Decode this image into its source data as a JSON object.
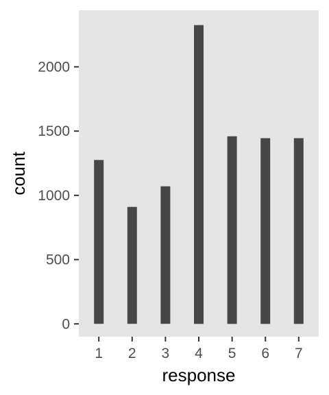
{
  "chart_data": {
    "type": "bar",
    "categories": [
      "1",
      "2",
      "3",
      "4",
      "5",
      "6",
      "7"
    ],
    "values": [
      1275,
      910,
      1070,
      2325,
      1460,
      1445,
      1445
    ],
    "xlabel": "response",
    "ylabel": "count",
    "yticks": [
      0,
      500,
      1000,
      1500,
      2000
    ],
    "ylim": [
      -100,
      2440
    ],
    "grid": false,
    "legend": "none",
    "colors": {
      "bar": "#474747",
      "panel": "#e5e5e5",
      "tick": "#4d4d4d",
      "title": "#000000"
    }
  }
}
